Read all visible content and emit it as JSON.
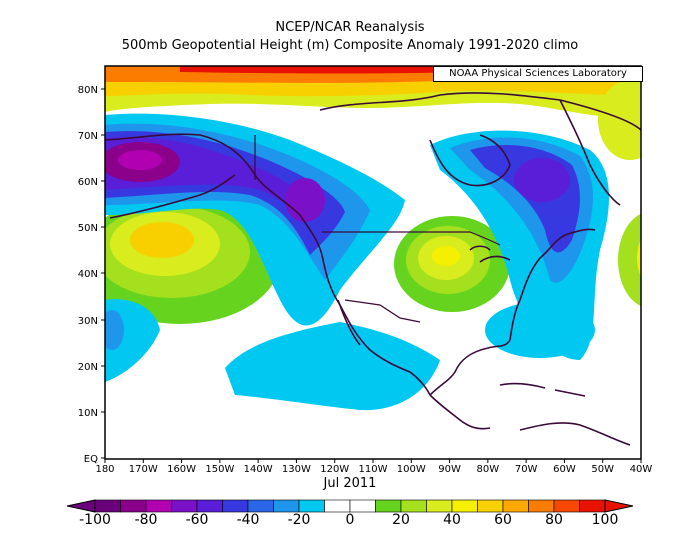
{
  "title": "NCEP/NCAR Reanalysis",
  "subtitle": "500mb Geopotential Height (m) Composite Anomaly 1991-2020 climo",
  "credit": "NOAA Physical Sciences Laboratory",
  "period": "Jul 2011",
  "lat_labels": [
    "80N",
    "70N",
    "60N",
    "50N",
    "40N",
    "30N",
    "20N",
    "10N",
    "EQ"
  ],
  "lon_labels": [
    "180",
    "170W",
    "160W",
    "150W",
    "140W",
    "130W",
    "120W",
    "110W",
    "100W",
    "90W",
    "80W",
    "70W",
    "60W",
    "50W",
    "40W"
  ],
  "colorbar": {
    "labels": [
      "-100",
      "-80",
      "-60",
      "-40",
      "-20",
      "0",
      "20",
      "40",
      "60",
      "80",
      "100"
    ],
    "colors": [
      "#6a007a",
      "#8a008a",
      "#b000b0",
      "#7a10c8",
      "#5a1ed8",
      "#3838e0",
      "#2b66e8",
      "#1e96ec",
      "#00c8f0",
      "#ffffff",
      "#ffffff",
      "#66d41e",
      "#a4e01e",
      "#d8ec1e",
      "#f4f000",
      "#f8d000",
      "#fca800",
      "#fc7c00",
      "#f84800",
      "#e81200"
    ]
  }
}
